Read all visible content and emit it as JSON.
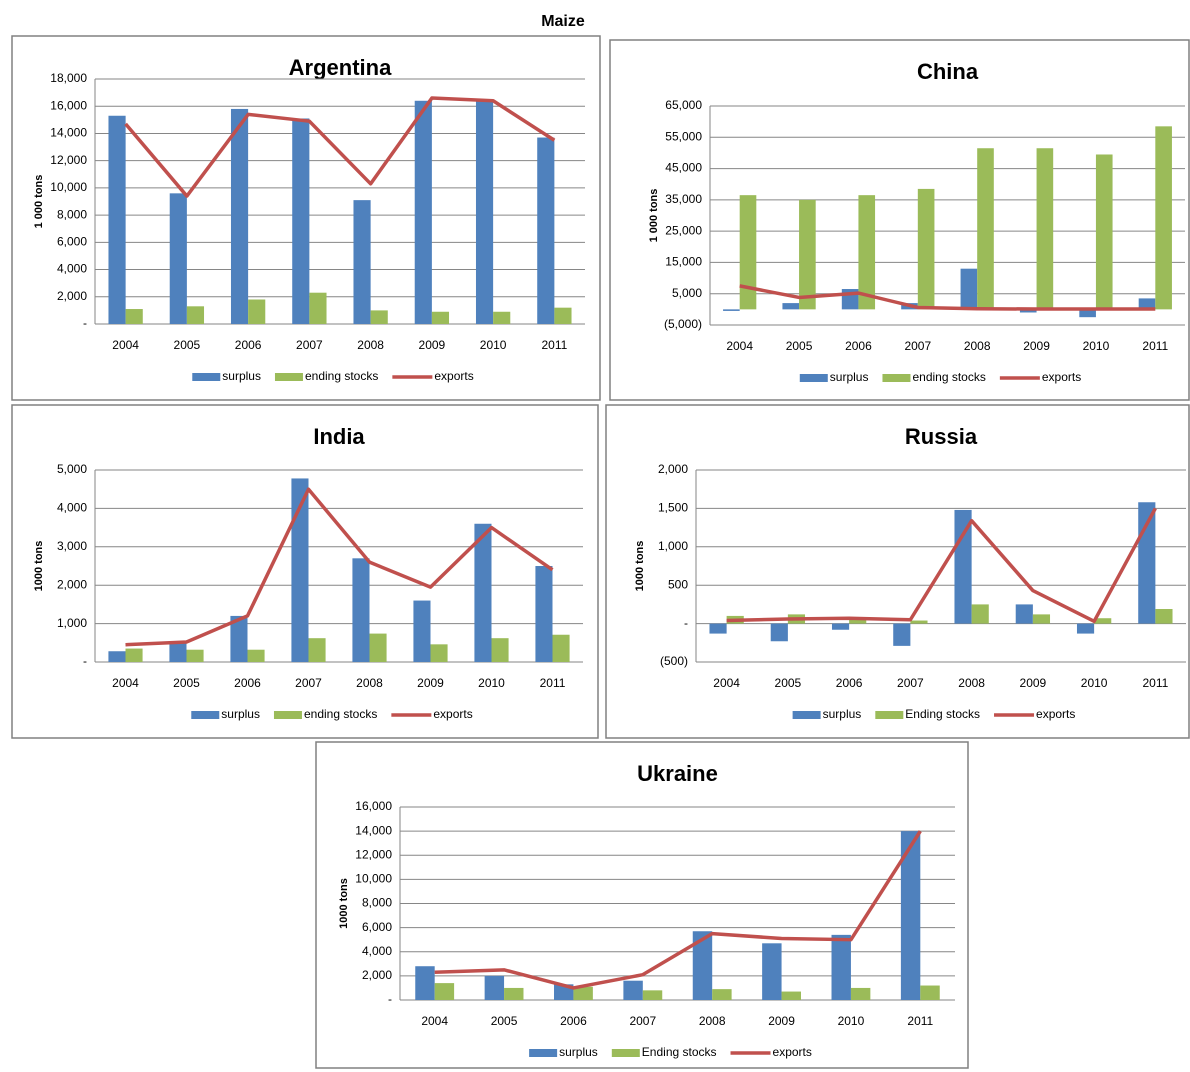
{
  "title": "Maize",
  "chart_data": [
    {
      "type": "bar",
      "title": "Argentina",
      "y_label": "1 000 tons",
      "categories": [
        "2004",
        "2005",
        "2006",
        "2007",
        "2008",
        "2009",
        "2010",
        "2011"
      ],
      "series": [
        {
          "name": "surplus",
          "color": "#4f81bd",
          "values": [
            15300,
            9600,
            15800,
            15100,
            9100,
            16400,
            16400,
            13700
          ]
        },
        {
          "name": "ending stocks",
          "color": "#9bbb59",
          "values": [
            1100,
            1300,
            1800,
            2300,
            1000,
            900,
            900,
            1200
          ]
        },
        {
          "name": "exports",
          "color": "#c0504d",
          "type": "line",
          "values": [
            14700,
            9400,
            15400,
            14900,
            10300,
            16600,
            16400,
            13500
          ]
        }
      ],
      "ylim": [
        0,
        18000
      ],
      "yticks": [
        {
          "value": 0,
          "label": "-"
        },
        {
          "value": 2000,
          "label": "2,000"
        },
        {
          "value": 4000,
          "label": "4,000"
        },
        {
          "value": 6000,
          "label": "6,000"
        },
        {
          "value": 8000,
          "label": "8,000"
        },
        {
          "value": 10000,
          "label": "10,000"
        },
        {
          "value": 12000,
          "label": "12,000"
        },
        {
          "value": 14000,
          "label": "14,000"
        },
        {
          "value": 16000,
          "label": "16,000"
        },
        {
          "value": 18000,
          "label": "18,000"
        }
      ],
      "grid": true
    },
    {
      "type": "bar",
      "title": "China",
      "y_label": "1 000 tons",
      "categories": [
        "2004",
        "2005",
        "2006",
        "2007",
        "2008",
        "2009",
        "2010",
        "2011"
      ],
      "series": [
        {
          "name": "surplus",
          "color": "#4f81bd",
          "values": [
            -500,
            2000,
            6500,
            2000,
            13000,
            -1000,
            -2500,
            3500
          ]
        },
        {
          "name": "ending stocks",
          "color": "#9bbb59",
          "values": [
            36500,
            35000,
            36500,
            38500,
            51500,
            51500,
            49500,
            58500
          ]
        },
        {
          "name": "exports",
          "color": "#c0504d",
          "type": "line",
          "values": [
            7500,
            3800,
            5200,
            600,
            200,
            100,
            100,
            100
          ]
        }
      ],
      "ylim": [
        -5000,
        65000
      ],
      "yticks": [
        {
          "value": -5000,
          "label": "(5,000)"
        },
        {
          "value": 5000,
          "label": "5,000"
        },
        {
          "value": 15000,
          "label": "15,000"
        },
        {
          "value": 25000,
          "label": "25,000"
        },
        {
          "value": 35000,
          "label": "35,000"
        },
        {
          "value": 45000,
          "label": "45,000"
        },
        {
          "value": 55000,
          "label": "55,000"
        },
        {
          "value": 65000,
          "label": "65,000"
        }
      ],
      "grid": true
    },
    {
      "type": "bar",
      "title": "India",
      "y_label": "1000 tons",
      "categories": [
        "2004",
        "2005",
        "2006",
        "2007",
        "2008",
        "2009",
        "2010",
        "2011"
      ],
      "series": [
        {
          "name": "surplus",
          "color": "#4f81bd",
          "values": [
            280,
            500,
            1200,
            4780,
            2700,
            1600,
            3600,
            2500
          ]
        },
        {
          "name": "ending stocks",
          "color": "#9bbb59",
          "values": [
            350,
            320,
            320,
            620,
            740,
            460,
            620,
            710
          ]
        },
        {
          "name": "exports",
          "color": "#c0504d",
          "type": "line",
          "values": [
            450,
            520,
            1200,
            4500,
            2600,
            1950,
            3500,
            2400
          ]
        }
      ],
      "ylim": [
        0,
        5000
      ],
      "yticks": [
        {
          "value": 0,
          "label": "-"
        },
        {
          "value": 1000,
          "label": "1,000"
        },
        {
          "value": 2000,
          "label": "2,000"
        },
        {
          "value": 3000,
          "label": "3,000"
        },
        {
          "value": 4000,
          "label": "4,000"
        },
        {
          "value": 5000,
          "label": "5,000"
        }
      ],
      "grid": true
    },
    {
      "type": "bar",
      "title": "Russia",
      "y_label": "1000 tons",
      "categories": [
        "2004",
        "2005",
        "2006",
        "2007",
        "2008",
        "2009",
        "2010",
        "2011"
      ],
      "series": [
        {
          "name": "surplus",
          "color": "#4f81bd",
          "values": [
            -130,
            -230,
            -80,
            -290,
            1480,
            250,
            -130,
            1580
          ]
        },
        {
          "name": "Ending stocks",
          "color": "#9bbb59",
          "values": [
            100,
            120,
            60,
            40,
            250,
            120,
            70,
            190
          ]
        },
        {
          "name": "exports",
          "color": "#c0504d",
          "type": "line",
          "values": [
            40,
            60,
            70,
            50,
            1340,
            430,
            30,
            1500
          ]
        }
      ],
      "ylim": [
        -500,
        2000
      ],
      "yticks": [
        {
          "value": -500,
          "label": "(500)"
        },
        {
          "value": 0,
          "label": "-"
        },
        500,
        {
          "value": 1000,
          "label": "1,000"
        },
        {
          "value": 1500,
          "label": "1,500"
        },
        {
          "value": 2000,
          "label": "2,000"
        }
      ],
      "grid": true
    },
    {
      "type": "bar",
      "title": "Ukraine",
      "y_label": "1000 tons",
      "categories": [
        "2004",
        "2005",
        "2006",
        "2007",
        "2008",
        "2009",
        "2010",
        "2011"
      ],
      "series": [
        {
          "name": "surplus",
          "color": "#4f81bd",
          "values": [
            2800,
            2000,
            1300,
            1600,
            5700,
            4700,
            5400,
            14000
          ]
        },
        {
          "name": "Ending stocks",
          "color": "#9bbb59",
          "values": [
            1400,
            1000,
            1100,
            800,
            900,
            700,
            1000,
            1200
          ]
        },
        {
          "name": "exports",
          "color": "#c0504d",
          "type": "line",
          "values": [
            2300,
            2500,
            1000,
            2100,
            5500,
            5100,
            5000,
            14000
          ]
        }
      ],
      "ylim": [
        0,
        16000
      ],
      "yticks": [
        {
          "value": 0,
          "label": "-"
        },
        {
          "value": 2000,
          "label": "2,000"
        },
        {
          "value": 4000,
          "label": "4,000"
        },
        {
          "value": 6000,
          "label": "6,000"
        },
        {
          "value": 8000,
          "label": "8,000"
        },
        {
          "value": 10000,
          "label": "10,000"
        },
        {
          "value": 12000,
          "label": "12,000"
        },
        {
          "value": 14000,
          "label": "14,000"
        },
        {
          "value": 16000,
          "label": "16,000"
        }
      ],
      "grid": true
    }
  ]
}
